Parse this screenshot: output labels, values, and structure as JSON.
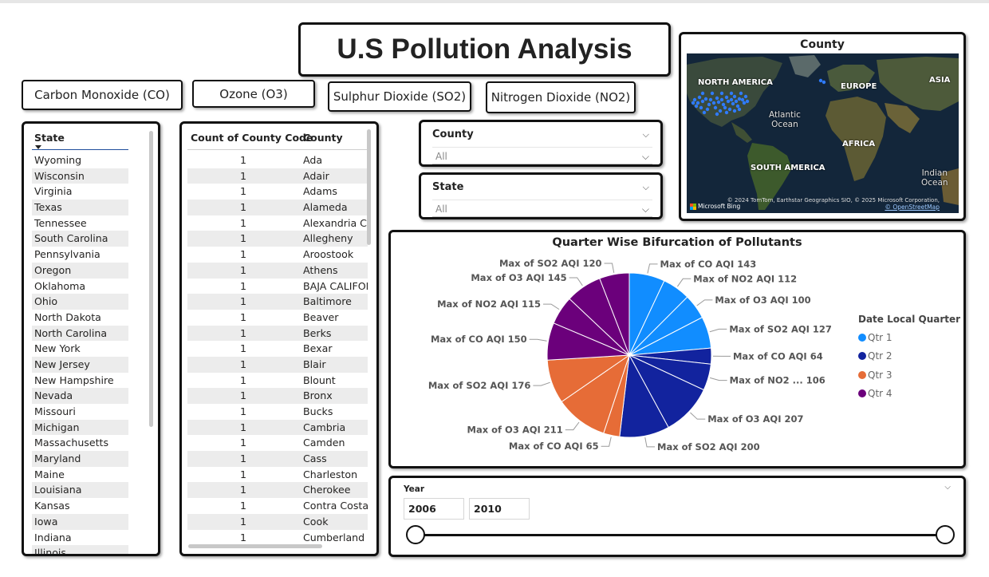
{
  "title": "U.S Pollution Analysis",
  "pollutant_buttons": {
    "co": "Carbon Monoxide (CO)",
    "o3": "Ozone (O3)",
    "so2": "Sulphur Dioxide (SO2)",
    "no2": "Nitrogen Dioxide (NO2)"
  },
  "state_table": {
    "header": "State",
    "rows": [
      "Wyoming",
      "Wisconsin",
      "Virginia",
      "Texas",
      "Tennessee",
      "South Carolina",
      "Pennsylvania",
      "Oregon",
      "Oklahoma",
      "Ohio",
      "North Dakota",
      "North Carolina",
      "New York",
      "New Jersey",
      "New Hampshire",
      "Nevada",
      "Missouri",
      "Michigan",
      "Massachusetts",
      "Maryland",
      "Maine",
      "Louisiana",
      "Kansas",
      "Iowa",
      "Indiana",
      "Illinois"
    ]
  },
  "county_table": {
    "header_count": "Count of County Code",
    "header_county": "County",
    "rows": [
      {
        "count": "1",
        "county": "Ada"
      },
      {
        "count": "1",
        "county": "Adair"
      },
      {
        "count": "1",
        "county": "Adams"
      },
      {
        "count": "1",
        "county": "Alameda"
      },
      {
        "count": "1",
        "county": "Alexandria City"
      },
      {
        "count": "1",
        "county": "Allegheny"
      },
      {
        "count": "1",
        "county": "Aroostook"
      },
      {
        "count": "1",
        "county": "Athens"
      },
      {
        "count": "1",
        "county": "BAJA CALIFORNIA"
      },
      {
        "count": "1",
        "county": "Baltimore"
      },
      {
        "count": "1",
        "county": "Beaver"
      },
      {
        "count": "1",
        "county": "Berks"
      },
      {
        "count": "1",
        "county": "Bexar"
      },
      {
        "count": "1",
        "county": "Blair"
      },
      {
        "count": "1",
        "county": "Blount"
      },
      {
        "count": "1",
        "county": "Bronx"
      },
      {
        "count": "1",
        "county": "Bucks"
      },
      {
        "count": "1",
        "county": "Cambria"
      },
      {
        "count": "1",
        "county": "Camden"
      },
      {
        "count": "1",
        "county": "Cass"
      },
      {
        "count": "1",
        "county": "Charleston"
      },
      {
        "count": "1",
        "county": "Cherokee"
      },
      {
        "count": "1",
        "county": "Contra Costa"
      },
      {
        "count": "1",
        "county": "Cook"
      },
      {
        "count": "1",
        "county": "Cumberland"
      }
    ]
  },
  "county_slicer": {
    "title": "County",
    "value": "All"
  },
  "state_slicer": {
    "title": "State",
    "value": "All"
  },
  "map": {
    "title": "County",
    "labels": {
      "north_america": "NORTH AMERICA",
      "europe": "EUROPE",
      "asia": "ASIA",
      "atlantic": "Atlantic\nOcean",
      "africa": "AFRICA",
      "south_america": "SOUTH AMERICA",
      "indian": "Indian\nOcean"
    },
    "credit": "© 2024 TomTom, Earthstar Geographics SIO, © 2025 Microsoft Corporation,",
    "osm": "© OpenStreetMap",
    "bing": "Microsoft Bing",
    "point_color": "#2f7bff"
  },
  "chart_data": {
    "type": "pie",
    "title": "Quarter Wise Bifurcation of Pollutants",
    "legend_title": "Date Local Quarter",
    "legend_position": "right",
    "series": [
      {
        "name": "Qtr 1",
        "color": "#118DFF"
      },
      {
        "name": "Qtr 2",
        "color": "#12239E"
      },
      {
        "name": "Qtr 3",
        "color": "#E66C37"
      },
      {
        "name": "Qtr 4",
        "color": "#6B007B"
      }
    ],
    "slices": [
      {
        "label": "Max of CO AQI 143",
        "quarter": "Qtr 1",
        "value": 143
      },
      {
        "label": "Max of NO2 AQI 112",
        "quarter": "Qtr 1",
        "value": 112
      },
      {
        "label": "Max of O3 AQI 100",
        "quarter": "Qtr 1",
        "value": 100
      },
      {
        "label": "Max of SO2 AQI 127",
        "quarter": "Qtr 1",
        "value": 127
      },
      {
        "label": "Max of CO AQI 64",
        "quarter": "Qtr 2",
        "value": 64
      },
      {
        "label": "Max of NO2 ... 106",
        "quarter": "Qtr 2",
        "value": 106
      },
      {
        "label": "Max of O3 AQI 207",
        "quarter": "Qtr 2",
        "value": 207
      },
      {
        "label": "Max of SO2 AQI 200",
        "quarter": "Qtr 2",
        "value": 200
      },
      {
        "label": "Max of CO AQI 65",
        "quarter": "Qtr 3",
        "value": 65
      },
      {
        "label": "Max of O3 AQI 211",
        "quarter": "Qtr 3",
        "value": 211
      },
      {
        "label": "Max of SO2 AQI 176",
        "quarter": "Qtr 3",
        "value": 176
      },
      {
        "label": "Max of CO AQI 150",
        "quarter": "Qtr 4",
        "value": 150
      },
      {
        "label": "Max of NO2 AQI 115",
        "quarter": "Qtr 4",
        "value": 115
      },
      {
        "label": "Max of O3 AQI 145",
        "quarter": "Qtr 4",
        "value": 145
      },
      {
        "label": "Max of SO2 AQI 120",
        "quarter": "Qtr 4",
        "value": 120
      }
    ]
  },
  "year_slicer": {
    "title": "Year",
    "from": "2006",
    "to": "2010"
  },
  "icons": {
    "chevron": "chevron-down-icon",
    "sort": "sort-arrow-icon"
  }
}
